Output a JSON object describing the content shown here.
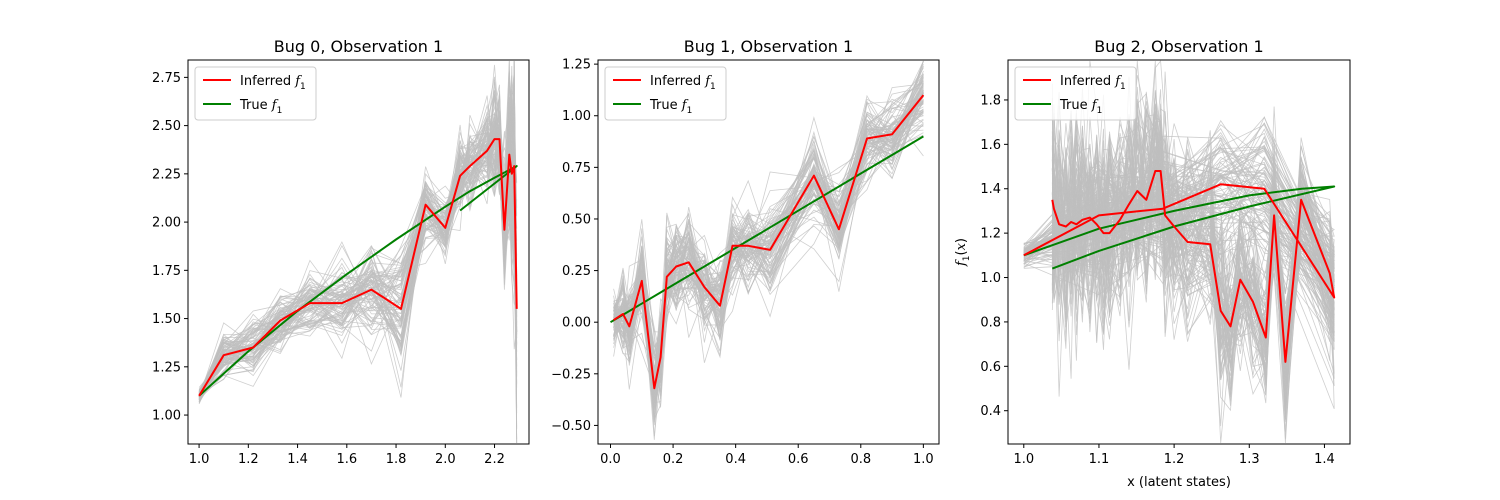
{
  "chart_data": [
    {
      "type": "line",
      "title": "Bug 0, Observation 1",
      "xlabel": "",
      "ylabel": "",
      "xlim": [
        0.955,
        2.34
      ],
      "ylim": [
        0.85,
        2.84
      ],
      "xticks": [
        1.0,
        1.2,
        1.4,
        1.6,
        1.8,
        2.0,
        2.2
      ],
      "xtick_labels": [
        "1.0",
        "1.2",
        "1.4",
        "1.6",
        "1.8",
        "2.0",
        "2.2"
      ],
      "yticks": [
        1.0,
        1.25,
        1.5,
        1.75,
        2.0,
        2.25,
        2.5,
        2.75
      ],
      "ytick_labels": [
        "1.00",
        "1.25",
        "1.50",
        "1.75",
        "2.00",
        "2.25",
        "2.50",
        "2.75"
      ],
      "legend": {
        "position": "upper-left",
        "entries": [
          "Inferred",
          "True"
        ]
      },
      "sample_band": {
        "color": "#bfbfbf",
        "count": 90,
        "spread_near_start": 0.04,
        "spread": [
          0.04,
          0.12,
          0.14,
          0.14,
          0.16,
          0.2,
          0.22,
          0.3,
          0.22,
          0.18,
          0.18,
          0.2,
          0.22,
          0.3,
          0.3,
          0.35,
          0.45,
          0.5,
          0.6
        ]
      },
      "series": [
        {
          "name": "Inferred",
          "color": "#ff0000",
          "x": [
            1.0,
            1.1,
            1.22,
            1.33,
            1.45,
            1.58,
            1.7,
            1.82,
            1.92,
            2.0,
            2.06,
            2.1,
            2.17,
            2.2,
            2.22,
            2.24,
            2.26,
            2.27,
            2.28,
            2.29
          ],
          "y": [
            1.1,
            1.31,
            1.35,
            1.49,
            1.58,
            1.58,
            1.65,
            1.55,
            2.09,
            1.97,
            2.24,
            2.29,
            2.37,
            2.43,
            2.43,
            1.96,
            2.35,
            2.25,
            2.29,
            1.55
          ]
        },
        {
          "name": "True",
          "color": "#008000",
          "x": [
            1.0,
            1.2,
            1.4,
            1.6,
            1.8,
            2.0,
            2.1,
            2.2,
            2.29,
            2.2,
            2.06
          ],
          "y": [
            1.1,
            1.33,
            1.54,
            1.73,
            1.91,
            2.08,
            2.16,
            2.23,
            2.29,
            2.2,
            2.06
          ]
        }
      ]
    },
    {
      "type": "line",
      "title": "Bug 1, Observation 1",
      "xlabel": "",
      "ylabel": "",
      "xlim": [
        -0.04,
        1.05
      ],
      "ylim": [
        -0.59,
        1.27
      ],
      "xticks": [
        0.0,
        0.2,
        0.4,
        0.6,
        0.8,
        1.0
      ],
      "xtick_labels": [
        "0.0",
        "0.2",
        "0.4",
        "0.6",
        "0.8",
        "1.0"
      ],
      "yticks": [
        -0.5,
        -0.25,
        0.0,
        0.25,
        0.5,
        0.75,
        1.0,
        1.25
      ],
      "ytick_labels": [
        "−0.50",
        "−0.25",
        "0.00",
        "0.25",
        "0.50",
        "0.75",
        "1.00",
        "1.25"
      ],
      "legend": {
        "position": "upper-left",
        "entries": [
          "Inferred",
          "True"
        ]
      },
      "sample_band": {
        "color": "#bfbfbf",
        "count": 90,
        "spread": [
          0.12,
          0.18,
          0.2,
          0.22,
          0.22,
          0.22,
          0.22,
          0.22,
          0.22,
          0.2,
          0.2,
          0.2,
          0.22,
          0.24,
          0.22,
          0.22,
          0.2,
          0.2,
          0.18
        ]
      },
      "series": [
        {
          "name": "Inferred",
          "color": "#ff0000",
          "x": [
            0.01,
            0.04,
            0.06,
            0.1,
            0.14,
            0.16,
            0.18,
            0.21,
            0.25,
            0.3,
            0.35,
            0.39,
            0.44,
            0.51,
            0.65,
            0.73,
            0.82,
            0.9,
            1.0
          ],
          "y": [
            0.01,
            0.04,
            -0.02,
            0.2,
            -0.32,
            -0.17,
            0.22,
            0.27,
            0.29,
            0.17,
            0.08,
            0.37,
            0.37,
            0.35,
            0.71,
            0.45,
            0.89,
            0.91,
            1.1
          ]
        },
        {
          "name": "True",
          "color": "#008000",
          "x": [
            0.0,
            0.2,
            0.4,
            0.6,
            0.8,
            1.0
          ],
          "y": [
            0.0,
            0.18,
            0.36,
            0.54,
            0.72,
            0.9
          ]
        }
      ]
    },
    {
      "type": "line",
      "title": "Bug 2, Observation 1",
      "xlabel": "x (latent states)",
      "ylabel": "f_1(x)",
      "xlim": [
        0.979,
        1.434
      ],
      "ylim": [
        0.25,
        1.98
      ],
      "xticks": [
        1.0,
        1.1,
        1.2,
        1.3,
        1.4
      ],
      "xtick_labels": [
        "1.0",
        "1.1",
        "1.2",
        "1.3",
        "1.4"
      ],
      "yticks": [
        0.4,
        0.6,
        0.8,
        1.0,
        1.2,
        1.4,
        1.6,
        1.8
      ],
      "ytick_labels": [
        "0.4",
        "0.6",
        "0.8",
        "1.0",
        "1.2",
        "1.4",
        "1.6",
        "1.8"
      ],
      "legend": {
        "position": "upper-left",
        "entries": [
          "Inferred",
          "True"
        ]
      },
      "sample_band": {
        "color": "#bfbfbf",
        "count": 90,
        "spread": [
          0.05,
          0.25,
          0.3,
          0.3,
          0.3,
          0.3,
          0.3,
          0.28,
          0.3,
          0.3,
          0.3,
          0.3,
          0.32,
          0.35,
          0.4,
          0.4,
          0.38,
          0.4,
          0.45,
          0.4,
          0.42,
          0.45,
          0.45,
          0.45,
          0.45,
          0.45,
          0.45,
          0.45
        ]
      },
      "series": [
        {
          "name": "Inferred",
          "color": "#ff0000",
          "x": [
            1.0,
            1.1,
            1.185,
            1.262,
            1.32,
            1.413,
            1.407,
            1.369,
            1.348,
            1.333,
            1.322,
            1.305,
            1.288,
            1.275,
            1.262,
            1.248,
            1.218,
            1.2,
            1.188,
            1.182,
            1.175,
            1.163,
            1.151,
            1.14,
            1.128,
            1.114,
            1.106,
            1.097,
            1.088,
            1.078,
            1.07,
            1.063,
            1.056,
            1.047,
            1.04,
            1.038
          ],
          "y": [
            1.1,
            1.28,
            1.31,
            1.42,
            1.4,
            0.91,
            1.02,
            1.35,
            0.62,
            1.28,
            0.73,
            0.89,
            0.99,
            0.78,
            0.85,
            1.15,
            1.16,
            1.23,
            1.28,
            1.48,
            1.48,
            1.35,
            1.39,
            1.33,
            1.26,
            1.2,
            1.2,
            1.24,
            1.27,
            1.26,
            1.24,
            1.25,
            1.23,
            1.24,
            1.31,
            1.35
          ]
        },
        {
          "name": "True",
          "color": "#008000",
          "x": [
            1.0,
            1.1,
            1.2,
            1.3,
            1.37,
            1.413,
            1.413,
            1.3,
            1.2,
            1.1,
            1.038
          ],
          "y": [
            1.1,
            1.22,
            1.3,
            1.37,
            1.4,
            1.41,
            1.41,
            1.32,
            1.23,
            1.12,
            1.04
          ]
        }
      ]
    }
  ]
}
